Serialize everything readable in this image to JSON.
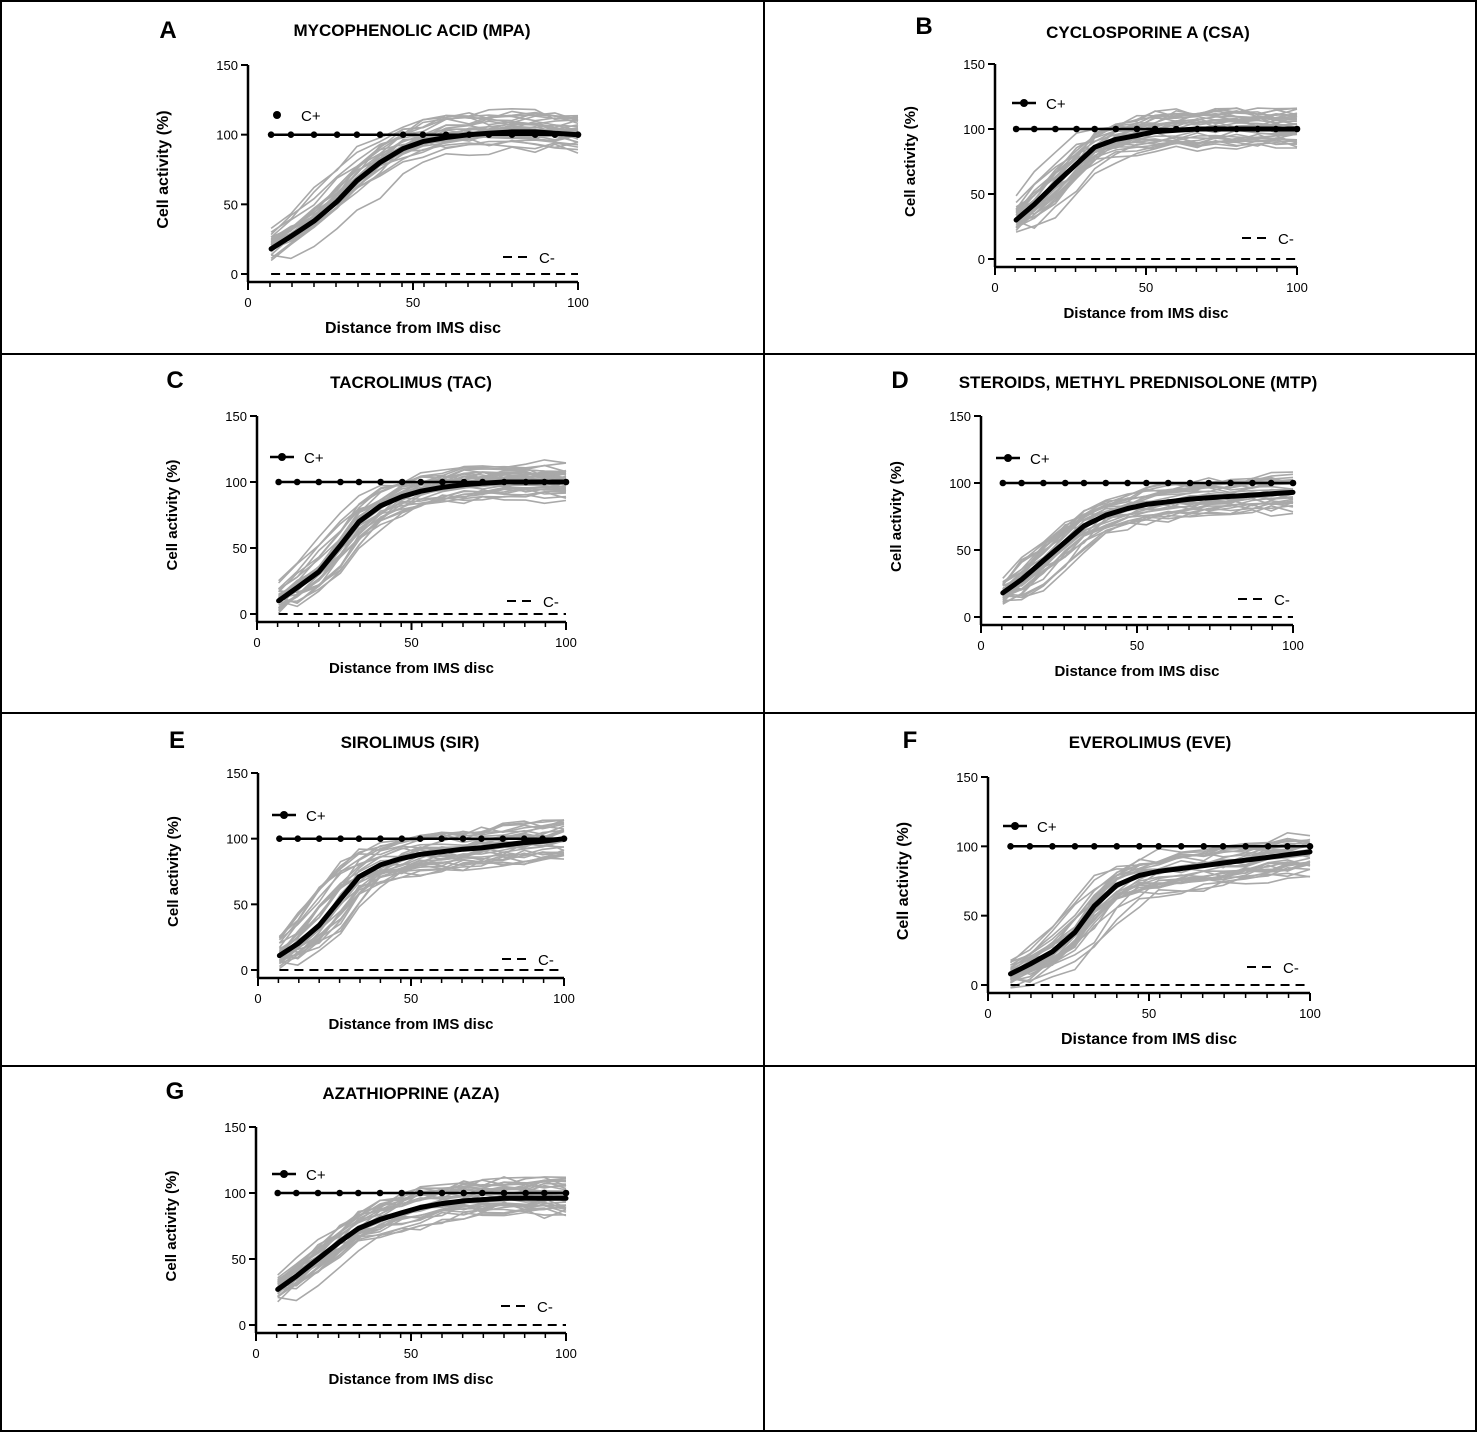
{
  "colors": {
    "individual_curves": "#a9a9a9",
    "mean_curve": "#000000",
    "control_lines": "#000000",
    "border": "#000000",
    "background": "#ffffff"
  },
  "chart_data": [
    {
      "panel": "A",
      "type": "line",
      "title": "MYCOPHENOLIC ACID (MPA)",
      "xlabel": "Distance from IMS disc",
      "ylabel": "Cell activity (%)",
      "xlim": [
        0,
        100
      ],
      "ylim": [
        0,
        150
      ],
      "xticks": [
        0,
        50,
        100
      ],
      "yticks": [
        0,
        50,
        100,
        150
      ],
      "legend": {
        "positive": "C+",
        "negative": "C-"
      },
      "series": [
        {
          "name": "Mean cell activity",
          "x": [
            7,
            13,
            20,
            27,
            33,
            40,
            47,
            53,
            60,
            67,
            73,
            80,
            87,
            93,
            100
          ],
          "y": [
            18,
            27,
            38,
            52,
            67,
            80,
            90,
            95,
            98,
            100,
            101,
            102,
            102,
            101,
            100
          ]
        },
        {
          "name": "C+",
          "x": [
            7,
            13,
            20,
            27,
            33,
            40,
            47,
            53,
            60,
            67,
            73,
            80,
            87,
            93,
            100
          ],
          "y": [
            100,
            100,
            100,
            100,
            100,
            100,
            100,
            100,
            100,
            100,
            100,
            100,
            100,
            100,
            100
          ]
        },
        {
          "name": "C-",
          "x": [
            7,
            100
          ],
          "y": [
            0,
            0
          ]
        }
      ]
    },
    {
      "panel": "B",
      "type": "line",
      "title": "CYCLOSPORINE A (CSA)",
      "xlabel": "Distance from IMS disc",
      "ylabel": "Cell activity (%)",
      "xlim": [
        0,
        100
      ],
      "ylim": [
        0,
        150
      ],
      "xticks": [
        0,
        50,
        100
      ],
      "yticks": [
        0,
        50,
        100,
        150
      ],
      "legend": {
        "positive": "C+",
        "negative": "C-"
      },
      "series": [
        {
          "name": "Mean cell activity",
          "x": [
            7,
            13,
            20,
            27,
            33,
            40,
            47,
            53,
            60,
            67,
            73,
            80,
            87,
            93,
            100
          ],
          "y": [
            30,
            42,
            58,
            73,
            86,
            92,
            95,
            98,
            99,
            100,
            100,
            100,
            100,
            100,
            100
          ]
        },
        {
          "name": "C+",
          "x": [
            7,
            13,
            20,
            27,
            33,
            40,
            47,
            53,
            60,
            67,
            73,
            80,
            87,
            93,
            100
          ],
          "y": [
            100,
            100,
            100,
            100,
            100,
            100,
            100,
            100,
            100,
            100,
            100,
            100,
            100,
            100,
            100
          ]
        },
        {
          "name": "C-",
          "x": [
            7,
            100
          ],
          "y": [
            0,
            0
          ]
        }
      ]
    },
    {
      "panel": "C",
      "type": "line",
      "title": "TACROLIMUS (TAC)",
      "xlabel": "Distance from IMS disc",
      "ylabel": "Cell activity (%)",
      "xlim": [
        0,
        100
      ],
      "ylim": [
        0,
        150
      ],
      "xticks": [
        0,
        50,
        100
      ],
      "yticks": [
        0,
        50,
        100,
        150
      ],
      "legend": {
        "positive": "C+",
        "negative": "C-"
      },
      "series": [
        {
          "name": "Mean cell activity",
          "x": [
            7,
            13,
            20,
            27,
            33,
            40,
            47,
            53,
            60,
            67,
            73,
            80,
            87,
            93,
            100
          ],
          "y": [
            10,
            20,
            32,
            52,
            70,
            82,
            89,
            93,
            96,
            98,
            99,
            100,
            100,
            100,
            100
          ]
        },
        {
          "name": "C+",
          "x": [
            7,
            13,
            20,
            27,
            33,
            40,
            47,
            53,
            60,
            67,
            73,
            80,
            87,
            93,
            100
          ],
          "y": [
            100,
            100,
            100,
            100,
            100,
            100,
            100,
            100,
            100,
            100,
            100,
            100,
            100,
            100,
            100
          ]
        },
        {
          "name": "C-",
          "x": [
            7,
            100
          ],
          "y": [
            0,
            0
          ]
        }
      ]
    },
    {
      "panel": "D",
      "type": "line",
      "title": "STEROIDS, METHYL PREDNISOLONE (MTP)",
      "xlabel": "Distance from IMS disc",
      "ylabel": "Cell activity (%)",
      "xlim": [
        0,
        100
      ],
      "ylim": [
        0,
        150
      ],
      "xticks": [
        0,
        50,
        100
      ],
      "yticks": [
        0,
        50,
        100,
        150
      ],
      "legend": {
        "positive": "C+",
        "negative": "C-"
      },
      "series": [
        {
          "name": "Mean cell activity",
          "x": [
            7,
            13,
            20,
            27,
            33,
            40,
            47,
            53,
            60,
            67,
            73,
            80,
            87,
            93,
            100
          ],
          "y": [
            18,
            28,
            42,
            56,
            68,
            76,
            81,
            84,
            86,
            88,
            89,
            90,
            91,
            92,
            93
          ]
        },
        {
          "name": "C+",
          "x": [
            7,
            13,
            20,
            27,
            33,
            40,
            47,
            53,
            60,
            67,
            73,
            80,
            87,
            93,
            100
          ],
          "y": [
            100,
            100,
            100,
            100,
            100,
            100,
            100,
            100,
            100,
            100,
            100,
            100,
            100,
            100,
            100
          ]
        },
        {
          "name": "C-",
          "x": [
            7,
            100
          ],
          "y": [
            0,
            0
          ]
        }
      ]
    },
    {
      "panel": "E",
      "type": "line",
      "title": "SIROLIMUS (SIR)",
      "xlabel": "Distance from IMS disc",
      "ylabel": "Cell activity (%)",
      "xlim": [
        0,
        100
      ],
      "ylim": [
        0,
        150
      ],
      "xticks": [
        0,
        50,
        100
      ],
      "yticks": [
        0,
        50,
        100,
        150
      ],
      "legend": {
        "positive": "C+",
        "negative": "C-"
      },
      "series": [
        {
          "name": "Mean cell activity",
          "x": [
            7,
            13,
            20,
            27,
            33,
            40,
            47,
            53,
            60,
            67,
            73,
            80,
            87,
            93,
            100
          ],
          "y": [
            11,
            20,
            34,
            54,
            71,
            80,
            85,
            88,
            90,
            92,
            93,
            95,
            97,
            98,
            100
          ]
        },
        {
          "name": "C+",
          "x": [
            7,
            13,
            20,
            27,
            33,
            40,
            47,
            53,
            60,
            67,
            73,
            80,
            87,
            93,
            100
          ],
          "y": [
            100,
            100,
            100,
            100,
            100,
            100,
            100,
            100,
            100,
            100,
            100,
            100,
            100,
            100,
            100
          ]
        },
        {
          "name": "C-",
          "x": [
            7,
            100
          ],
          "y": [
            0,
            0
          ]
        }
      ]
    },
    {
      "panel": "F",
      "type": "line",
      "title": "EVEROLIMUS (EVE)",
      "xlabel": "Distance from IMS disc",
      "ylabel": "Cell activity (%)",
      "xlim": [
        0,
        100
      ],
      "ylim": [
        0,
        150
      ],
      "xticks": [
        0,
        50,
        100
      ],
      "yticks": [
        0,
        50,
        100,
        150
      ],
      "legend": {
        "positive": "C+",
        "negative": "C-"
      },
      "series": [
        {
          "name": "Mean cell activity",
          "x": [
            7,
            13,
            20,
            27,
            33,
            40,
            47,
            53,
            60,
            67,
            73,
            80,
            87,
            93,
            100
          ],
          "y": [
            8,
            15,
            24,
            38,
            57,
            72,
            79,
            82,
            84,
            86,
            88,
            90,
            92,
            94,
            96
          ]
        },
        {
          "name": "C+",
          "x": [
            7,
            13,
            20,
            27,
            33,
            40,
            47,
            53,
            60,
            67,
            73,
            80,
            87,
            93,
            100
          ],
          "y": [
            100,
            100,
            100,
            100,
            100,
            100,
            100,
            100,
            100,
            100,
            100,
            100,
            100,
            100,
            100
          ]
        },
        {
          "name": "C-",
          "x": [
            7,
            100
          ],
          "y": [
            0,
            0
          ]
        }
      ]
    },
    {
      "panel": "G",
      "type": "line",
      "title": "AZATHIOPRINE (AZA)",
      "xlabel": "Distance from IMS disc",
      "ylabel": "Cell activity (%)",
      "xlim": [
        0,
        100
      ],
      "ylim": [
        0,
        150
      ],
      "xticks": [
        0,
        50,
        100
      ],
      "yticks": [
        0,
        50,
        100,
        150
      ],
      "legend": {
        "positive": "C+",
        "negative": "C-"
      },
      "series": [
        {
          "name": "Mean cell activity",
          "x": [
            7,
            13,
            20,
            27,
            33,
            40,
            47,
            53,
            60,
            67,
            73,
            80,
            87,
            93,
            100
          ],
          "y": [
            27,
            37,
            50,
            63,
            73,
            80,
            85,
            89,
            92,
            94,
            95,
            96,
            96,
            96,
            96
          ]
        },
        {
          "name": "C+",
          "x": [
            7,
            13,
            20,
            27,
            33,
            40,
            47,
            53,
            60,
            67,
            73,
            80,
            87,
            93,
            100
          ],
          "y": [
            100,
            100,
            100,
            100,
            100,
            100,
            100,
            100,
            100,
            100,
            100,
            100,
            100,
            100,
            100
          ]
        },
        {
          "name": "C-",
          "x": [
            7,
            100
          ],
          "y": [
            0,
            0
          ]
        }
      ]
    }
  ]
}
